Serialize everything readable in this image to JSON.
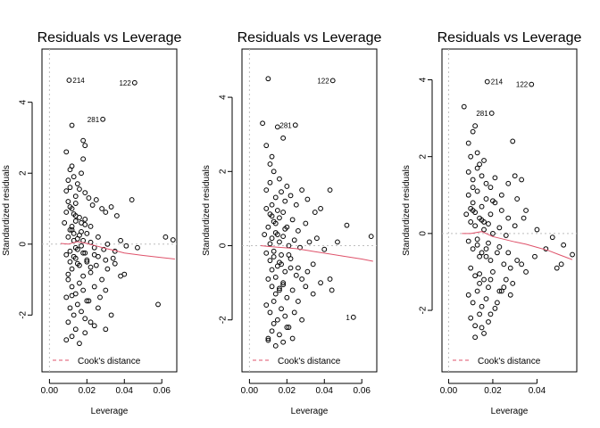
{
  "chart_data": [
    {
      "type": "scatter",
      "title": "Residuals vs Leverage",
      "xlabel": "Leverage",
      "ylabel": "Standardized residuals",
      "xlim": [
        -0.004,
        0.068
      ],
      "ylim": [
        -3.6,
        5.5
      ],
      "xticks": [
        0.0,
        0.02,
        0.04,
        0.06
      ],
      "xtick_labels": [
        "0.00",
        "0.02",
        "0.04",
        "0.06"
      ],
      "yticks": [
        -2,
        0,
        2,
        4
      ],
      "ytick_labels": [
        "-2",
        "0",
        "2",
        "4"
      ],
      "grid": false,
      "legend": {
        "position": "bottom-left",
        "entries": [
          "Cook's distance"
        ]
      },
      "labeled_points": [
        {
          "label": "214",
          "x": 0.0105,
          "y": 4.62
        },
        {
          "label": "122",
          "x": 0.0455,
          "y": 4.55
        },
        {
          "label": "281",
          "x": 0.0285,
          "y": 3.52
        }
      ],
      "smooth_line": {
        "x": [
          0.006,
          0.01,
          0.015,
          0.02,
          0.025,
          0.03,
          0.035,
          0.04,
          0.05,
          0.06,
          0.067
        ],
        "y": [
          0.02,
          0.0,
          0.07,
          0.02,
          -0.05,
          -0.12,
          -0.18,
          -0.25,
          -0.32,
          -0.38,
          -0.42
        ]
      },
      "points": {
        "x": [
          0.009,
          0.012,
          0.018,
          0.019,
          0.011,
          0.018,
          0.017,
          0.01,
          0.009,
          0.01,
          0.011,
          0.013,
          0.015,
          0.014,
          0.016,
          0.019,
          0.021,
          0.023,
          0.025,
          0.028,
          0.03,
          0.033,
          0.036,
          0.044,
          0.012,
          0.014,
          0.017,
          0.019,
          0.022,
          0.009,
          0.008,
          0.011,
          0.01,
          0.012,
          0.013,
          0.013,
          0.014,
          0.015,
          0.016,
          0.017,
          0.018,
          0.02,
          0.022,
          0.024,
          0.026,
          0.029,
          0.031,
          0.035,
          0.038,
          0.041,
          0.047,
          0.062,
          0.066,
          0.058,
          0.009,
          0.011,
          0.012,
          0.014,
          0.016,
          0.018,
          0.02,
          0.022,
          0.025,
          0.028,
          0.031,
          0.034,
          0.038,
          0.01,
          0.012,
          0.014,
          0.016,
          0.018,
          0.02,
          0.024,
          0.027,
          0.03,
          0.009,
          0.011,
          0.013,
          0.015,
          0.017,
          0.019,
          0.021,
          0.024,
          0.026,
          0.03,
          0.033,
          0.01,
          0.012,
          0.014,
          0.016,
          0.019,
          0.022,
          0.011,
          0.013,
          0.015,
          0.018,
          0.02,
          0.024,
          0.012,
          0.014,
          0.016,
          0.019,
          0.012,
          0.011,
          0.013,
          0.01,
          0.015,
          0.017,
          0.022,
          0.026,
          0.03,
          0.035,
          0.04,
          0.019,
          0.012,
          0.009,
          0.014
        ],
        "y": [
          2.6,
          2.2,
          2.92,
          2.78,
          2.1,
          2.4,
          2.0,
          1.8,
          1.5,
          1.2,
          1.6,
          1.9,
          1.7,
          1.35,
          1.55,
          1.45,
          1.3,
          1.1,
          1.25,
          1.0,
          0.9,
          1.05,
          0.8,
          1.25,
          1.0,
          0.8,
          0.6,
          0.7,
          0.5,
          0.9,
          0.6,
          0.4,
          0.2,
          0.5,
          0.3,
          0.1,
          -0.1,
          0.15,
          0.25,
          -0.05,
          0.1,
          0.3,
          0.05,
          -0.1,
          0.2,
          -0.15,
          0.0,
          -0.2,
          0.1,
          -0.05,
          -0.1,
          0.2,
          0.12,
          -1.7,
          -0.3,
          -0.5,
          -0.7,
          -0.4,
          -0.6,
          -0.9,
          -0.5,
          -0.8,
          -0.6,
          -1.0,
          -0.7,
          -0.4,
          -0.9,
          -1.0,
          -1.2,
          -1.4,
          -1.1,
          -1.3,
          -1.6,
          -1.2,
          -1.5,
          -1.3,
          -1.5,
          -1.8,
          -2.0,
          -1.7,
          -1.9,
          -2.1,
          -1.6,
          -2.3,
          -1.8,
          -2.4,
          -2.0,
          -2.2,
          -2.6,
          -2.4,
          -2.8,
          -2.5,
          -2.2,
          -0.2,
          -0.35,
          -0.55,
          -0.25,
          -0.45,
          -0.3,
          0.4,
          0.65,
          0.75,
          0.55,
          3.35,
          1.05,
          0.85,
          -0.85,
          -0.15,
          0.35,
          -0.65,
          -0.35,
          -0.45,
          -0.55,
          -0.85,
          -0.25,
          -1.45,
          -2.7,
          1.15
        ]
      }
    },
    {
      "type": "scatter",
      "title": "Residuals vs Leverage",
      "xlabel": "Leverage",
      "ylabel": "Standardized residuals",
      "xlim": [
        -0.004,
        0.068
      ],
      "ylim": [
        -3.4,
        5.3
      ],
      "xticks": [
        0.0,
        0.02,
        0.04,
        0.06
      ],
      "xtick_labels": [
        "0.00",
        "0.02",
        "0.04",
        "0.06"
      ],
      "yticks": [
        -2,
        0,
        2,
        4
      ],
      "ytick_labels": [
        "-2",
        "0",
        "2",
        "4"
      ],
      "grid": false,
      "legend": {
        "position": "bottom-left",
        "entries": [
          "Cook's distance"
        ]
      },
      "labeled_points": [
        {
          "label": "122",
          "x": 0.0445,
          "y": 4.45
        },
        {
          "label": "281",
          "x": 0.0245,
          "y": 3.25
        },
        {
          "label": "1",
          "x": 0.0555,
          "y": -1.93
        }
      ],
      "smooth_line": {
        "x": [
          0.006,
          0.01,
          0.015,
          0.02,
          0.025,
          0.03,
          0.035,
          0.04,
          0.05,
          0.06,
          0.066
        ],
        "y": [
          0.0,
          -0.02,
          -0.04,
          -0.06,
          -0.08,
          -0.12,
          -0.16,
          -0.2,
          -0.28,
          -0.36,
          -0.42
        ]
      },
      "points": {
        "x": [
          0.01,
          0.007,
          0.009,
          0.012,
          0.015,
          0.011,
          0.013,
          0.016,
          0.018,
          0.02,
          0.009,
          0.011,
          0.014,
          0.017,
          0.019,
          0.022,
          0.025,
          0.028,
          0.031,
          0.035,
          0.038,
          0.043,
          0.009,
          0.012,
          0.014,
          0.016,
          0.018,
          0.02,
          0.023,
          0.026,
          0.03,
          0.008,
          0.01,
          0.012,
          0.014,
          0.016,
          0.018,
          0.021,
          0.024,
          0.027,
          0.032,
          0.036,
          0.04,
          0.047,
          0.052,
          0.065,
          0.009,
          0.011,
          0.013,
          0.015,
          0.017,
          0.019,
          0.022,
          0.025,
          0.028,
          0.031,
          0.034,
          0.038,
          0.043,
          0.01,
          0.012,
          0.014,
          0.016,
          0.018,
          0.02,
          0.023,
          0.026,
          0.03,
          0.034,
          0.009,
          0.011,
          0.013,
          0.015,
          0.017,
          0.019,
          0.021,
          0.024,
          0.028,
          0.01,
          0.012,
          0.014,
          0.016,
          0.018,
          0.02,
          0.023,
          0.011,
          0.013,
          0.015,
          0.017,
          0.011,
          0.013,
          0.012,
          0.014,
          0.016,
          0.019,
          0.022,
          0.026,
          0.012,
          0.015,
          0.018,
          0.021,
          0.01,
          0.013,
          0.016,
          0.044
        ],
        "y": [
          4.5,
          3.3,
          2.7,
          2.4,
          3.2,
          2.2,
          2.0,
          1.8,
          2.9,
          1.6,
          1.5,
          1.7,
          1.3,
          1.45,
          1.2,
          1.35,
          1.1,
          1.5,
          1.25,
          0.9,
          1.0,
          1.5,
          1.0,
          0.8,
          0.6,
          0.75,
          0.9,
          0.5,
          0.7,
          0.4,
          0.6,
          0.3,
          0.5,
          0.2,
          0.35,
          0.1,
          0.25,
          0.0,
          0.15,
          -0.05,
          0.1,
          0.2,
          -0.1,
          0.1,
          0.55,
          0.25,
          -0.2,
          -0.4,
          -0.3,
          -0.55,
          -0.5,
          -0.7,
          -0.6,
          -0.8,
          -0.9,
          -0.7,
          -0.5,
          -1.0,
          -0.9,
          -0.9,
          -1.1,
          -1.3,
          -1.2,
          -1.0,
          -1.4,
          -1.2,
          -1.5,
          -1.1,
          -1.3,
          -1.6,
          -1.8,
          -1.5,
          -2.0,
          -1.7,
          -1.9,
          -2.2,
          -1.8,
          -2.0,
          -2.5,
          -2.3,
          -2.7,
          -2.4,
          -2.6,
          -2.2,
          -2.5,
          0.05,
          -0.15,
          0.3,
          -0.25,
          0.85,
          0.65,
          -0.65,
          -0.85,
          -0.45,
          0.45,
          -0.35,
          -0.6,
          1.1,
          0.95,
          -1.05,
          -0.25,
          -2.55,
          -2.1,
          -1.15,
          -1.2
        ]
      }
    },
    {
      "type": "scatter",
      "title": "Residuals vs Leverage",
      "xlabel": "Leverage",
      "ylabel": "Standardized residuals",
      "xlim": [
        -0.003,
        0.058
      ],
      "ylim": [
        -3.6,
        4.8
      ],
      "xticks": [
        0.0,
        0.02,
        0.04
      ],
      "xtick_labels": [
        "0.00",
        "0.02",
        "0.04"
      ],
      "yticks": [
        -2,
        0,
        2,
        4
      ],
      "ytick_labels": [
        "-2",
        "0",
        "2",
        "4"
      ],
      "grid": false,
      "legend": {
        "position": "bottom-left",
        "entries": [
          "Cook's distance"
        ]
      },
      "labeled_points": [
        {
          "label": "214",
          "x": 0.0175,
          "y": 3.95
        },
        {
          "label": "122",
          "x": 0.0375,
          "y": 3.88
        },
        {
          "label": "281",
          "x": 0.0195,
          "y": 3.13
        }
      ],
      "smooth_line": {
        "x": [
          0.006,
          0.01,
          0.015,
          0.02,
          0.025,
          0.03,
          0.035,
          0.04,
          0.045,
          0.05,
          0.056
        ],
        "y": [
          0.0,
          0.0,
          0.05,
          -0.08,
          -0.15,
          -0.22,
          -0.28,
          -0.36,
          -0.44,
          -0.55,
          -0.68
        ]
      },
      "points": {
        "x": [
          0.007,
          0.011,
          0.009,
          0.013,
          0.01,
          0.012,
          0.014,
          0.016,
          0.029,
          0.009,
          0.011,
          0.013,
          0.015,
          0.017,
          0.019,
          0.021,
          0.024,
          0.027,
          0.03,
          0.033,
          0.009,
          0.011,
          0.013,
          0.015,
          0.017,
          0.019,
          0.021,
          0.024,
          0.027,
          0.031,
          0.035,
          0.008,
          0.01,
          0.012,
          0.014,
          0.016,
          0.018,
          0.02,
          0.023,
          0.026,
          0.03,
          0.034,
          0.04,
          0.047,
          0.052,
          0.056,
          0.009,
          0.011,
          0.013,
          0.015,
          0.017,
          0.019,
          0.022,
          0.025,
          0.028,
          0.031,
          0.035,
          0.039,
          0.044,
          0.049,
          0.01,
          0.012,
          0.014,
          0.016,
          0.018,
          0.02,
          0.023,
          0.026,
          0.029,
          0.033,
          0.009,
          0.011,
          0.013,
          0.015,
          0.017,
          0.019,
          0.022,
          0.025,
          0.028,
          0.01,
          0.012,
          0.014,
          0.016,
          0.018,
          0.021,
          0.024,
          0.011,
          0.013,
          0.015,
          0.018,
          0.01,
          0.012,
          0.014,
          0.017,
          0.02,
          0.023,
          0.027,
          0.011,
          0.014,
          0.016,
          0.019,
          0.012,
          0.015,
          0.051
        ],
        "y": [
          3.3,
          2.65,
          2.35,
          2.1,
          2.0,
          2.8,
          1.8,
          1.9,
          2.4,
          1.6,
          1.4,
          1.7,
          1.5,
          1.3,
          1.2,
          1.45,
          1.0,
          1.3,
          1.5,
          1.4,
          1.0,
          0.8,
          1.1,
          0.7,
          0.9,
          0.5,
          0.8,
          0.6,
          0.4,
          0.9,
          0.6,
          0.5,
          0.3,
          0.2,
          0.4,
          0.1,
          0.25,
          0.0,
          0.15,
          -0.05,
          0.2,
          0.4,
          0.1,
          -0.1,
          -0.3,
          -0.55,
          -0.2,
          -0.4,
          -0.3,
          -0.5,
          -0.6,
          -0.7,
          -0.5,
          -0.8,
          -0.9,
          -0.7,
          -1.0,
          -0.6,
          -0.4,
          -0.9,
          -0.9,
          -1.1,
          -1.3,
          -1.2,
          -1.4,
          -1.0,
          -1.5,
          -1.2,
          -1.3,
          -0.8,
          -1.6,
          -1.8,
          -1.5,
          -1.9,
          -1.7,
          -2.1,
          -1.8,
          -1.4,
          -1.6,
          -2.2,
          -2.4,
          -2.1,
          -2.6,
          -2.3,
          -1.95,
          -1.5,
          0.6,
          -0.15,
          0.35,
          -0.25,
          0.65,
          0.55,
          -0.6,
          -0.4,
          0.85,
          -0.35,
          -0.5,
          1.2,
          -1.05,
          0.3,
          -1.2,
          -2.7,
          -2.45,
          -0.8
        ]
      }
    }
  ]
}
